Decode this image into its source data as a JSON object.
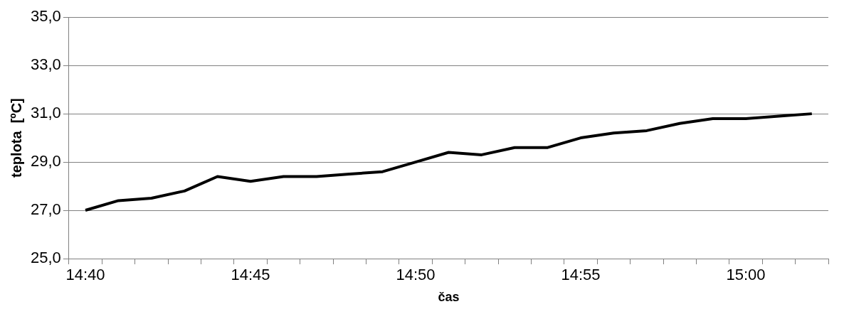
{
  "chart_data": {
    "type": "line",
    "xlabel": "čas",
    "ylabel": "teplota  [ºC]",
    "categories": [
      "14:40",
      null,
      null,
      null,
      null,
      "14:45",
      null,
      null,
      null,
      null,
      "14:50",
      null,
      null,
      null,
      null,
      "14:55",
      null,
      null,
      null,
      null,
      "15:00",
      null,
      null
    ],
    "series": [
      {
        "color": "#000000",
        "values": [
          27.0,
          27.4,
          27.5,
          27.8,
          28.4,
          28.2,
          28.4,
          28.4,
          28.5,
          28.6,
          29.0,
          29.4,
          29.3,
          29.6,
          29.6,
          30.0,
          30.2,
          30.3,
          30.6,
          30.8,
          30.8,
          30.9,
          31.0
        ]
      }
    ],
    "ylim": [
      25,
      35
    ],
    "yticks": [
      {
        "value": 25,
        "label": "25,0"
      },
      {
        "value": 27,
        "label": "27,0"
      },
      {
        "value": 29,
        "label": "29,0"
      },
      {
        "value": 31,
        "label": "31,0"
      },
      {
        "value": 33,
        "label": "33,0"
      },
      {
        "value": 35,
        "label": "35,0"
      }
    ],
    "grid": "y",
    "legend": false,
    "marker": "none",
    "line_style": "solid"
  }
}
